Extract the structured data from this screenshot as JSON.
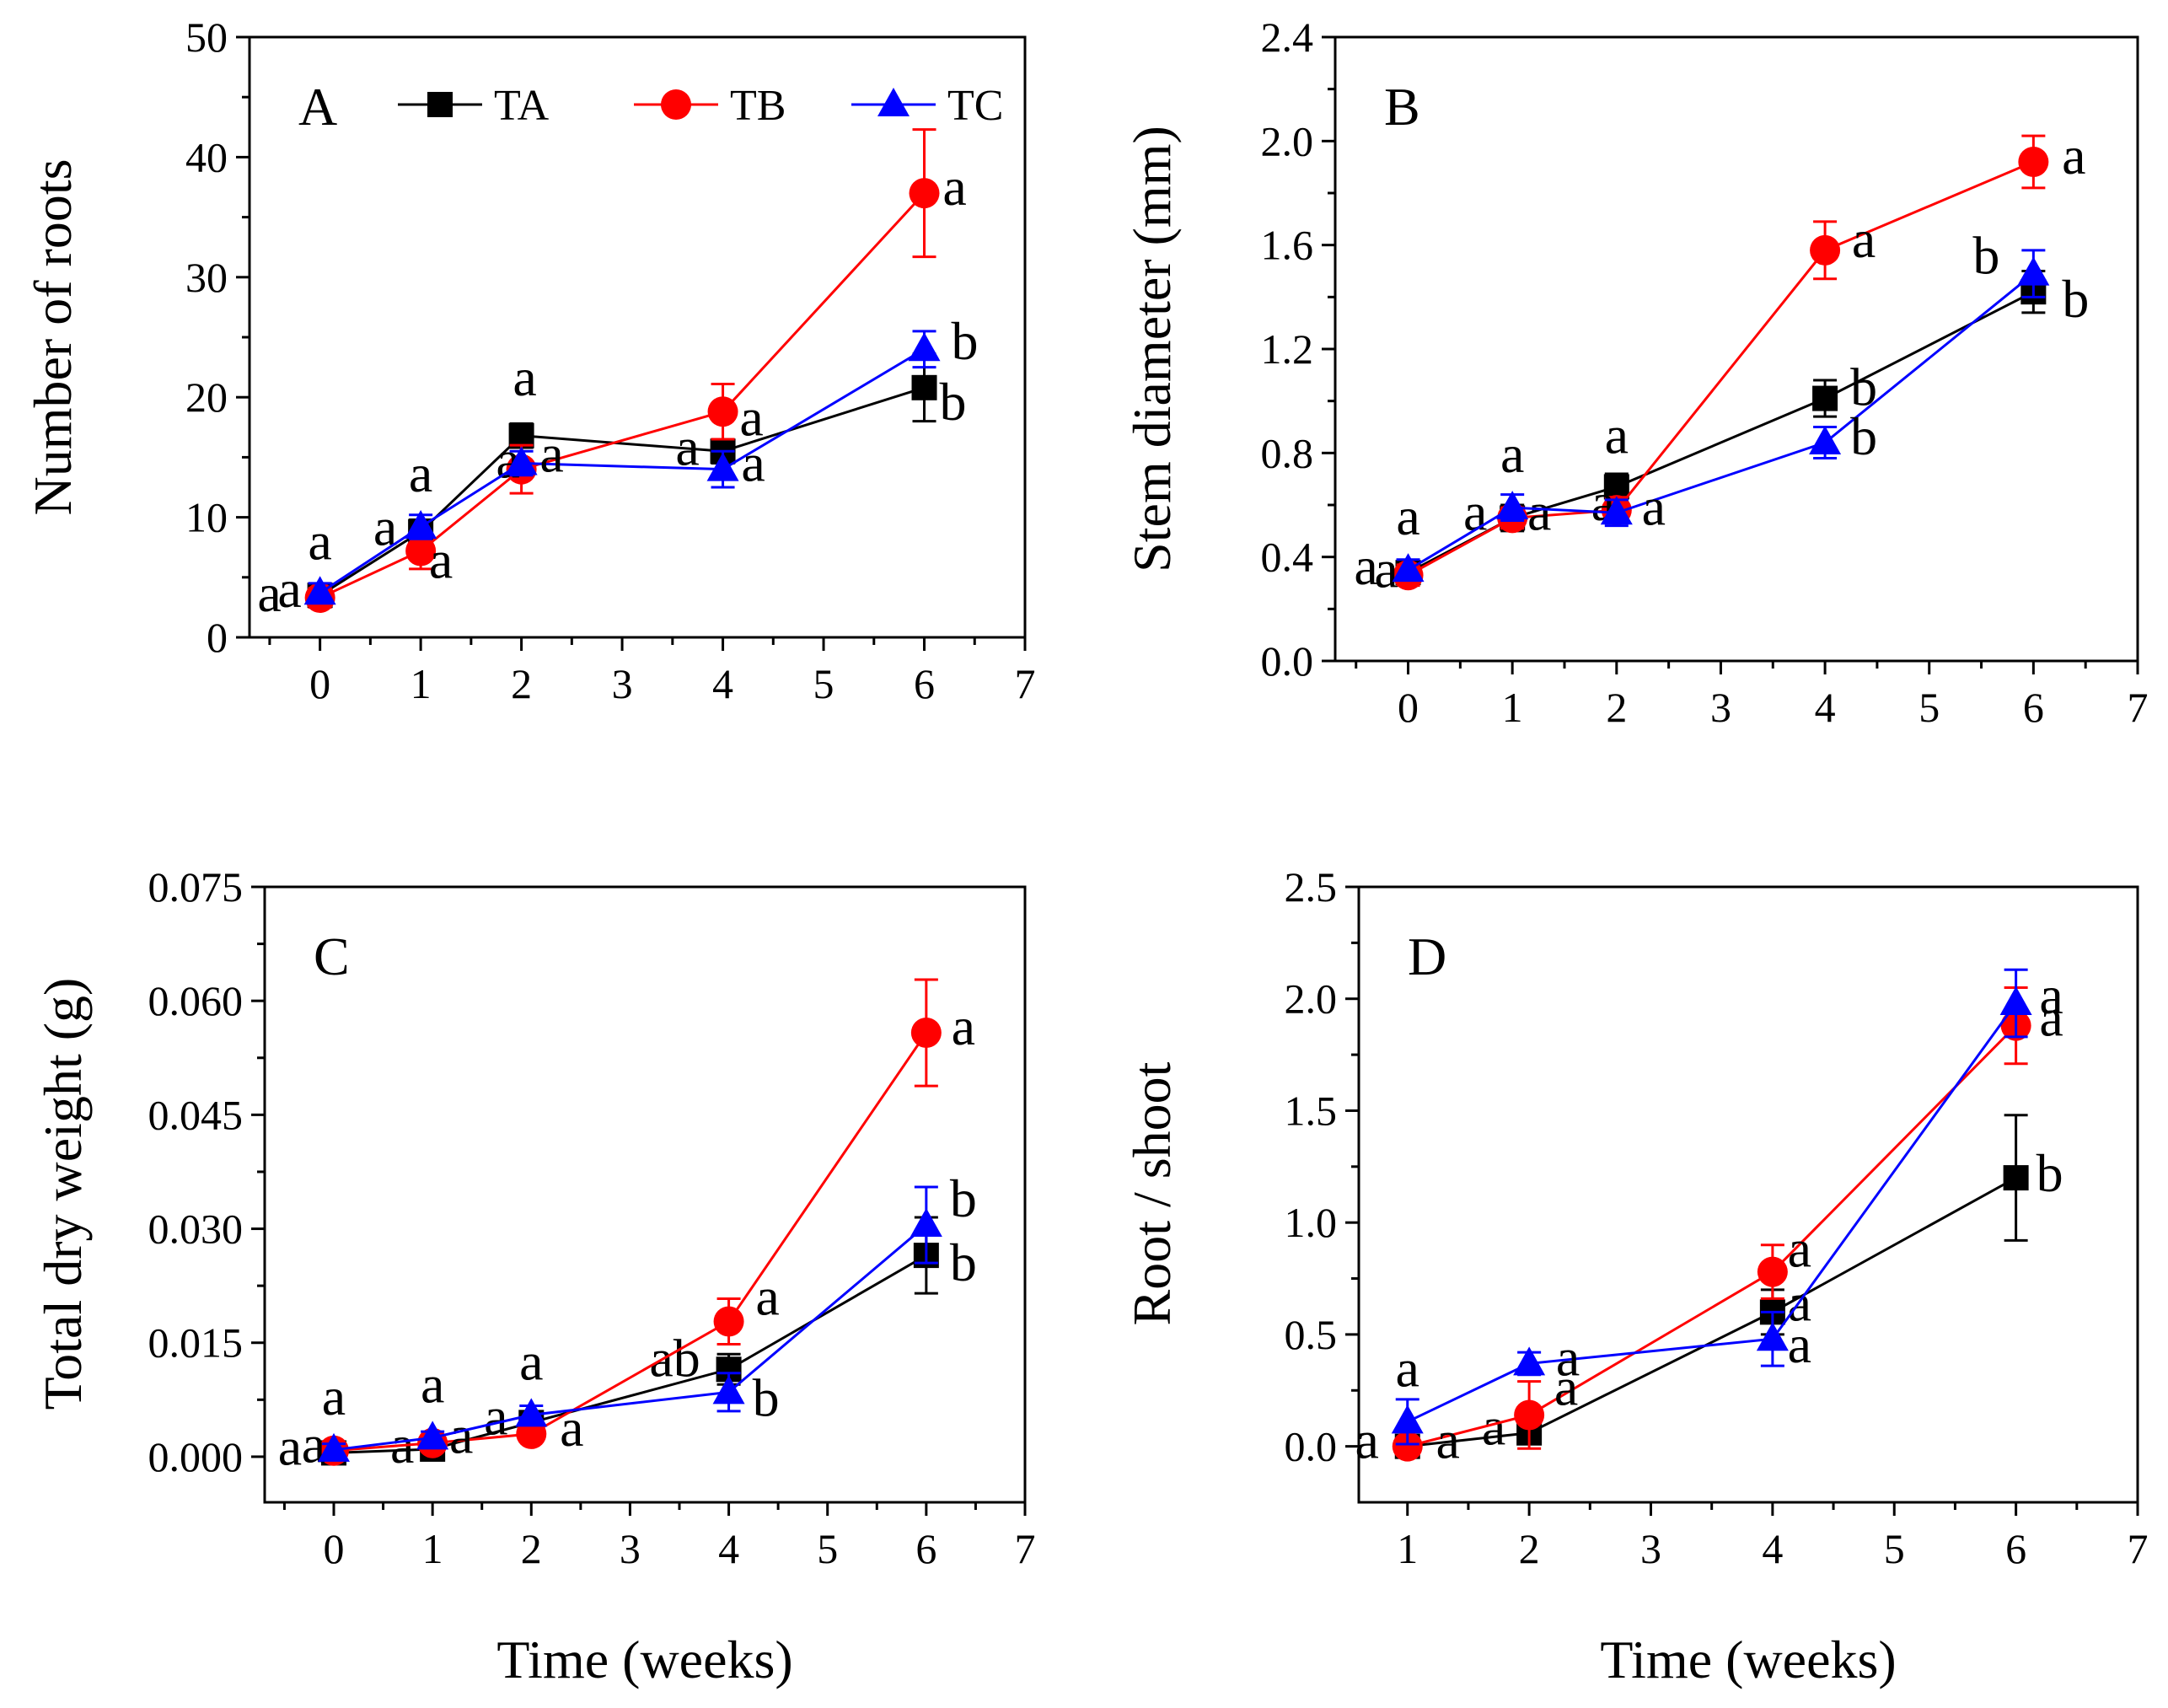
{
  "figure": {
    "series": [
      {
        "key": "TA",
        "name": "TA",
        "color": "#000000",
        "marker": "square"
      },
      {
        "key": "TB",
        "name": "TB",
        "color": "#ff0000",
        "marker": "circle"
      },
      {
        "key": "TC",
        "name": "TC",
        "color": "#0000ff",
        "marker": "triangle"
      }
    ]
  },
  "chart_data": [
    {
      "id": "A",
      "type": "line",
      "panel_label": "A",
      "xlabel": "",
      "ylabel": "Number of roots",
      "xlim": [
        -0.7,
        7
      ],
      "ylim": [
        0,
        50
      ],
      "xticks": [
        0,
        1,
        2,
        3,
        4,
        5,
        6,
        7
      ],
      "yticks": [
        0,
        10,
        20,
        30,
        40,
        50
      ],
      "ytick_labels": [
        "0",
        "10",
        "20",
        "30",
        "40",
        "50"
      ],
      "legend": "top",
      "x": [
        0,
        1,
        2,
        4,
        6
      ],
      "series": [
        {
          "name": "TA",
          "values": [
            3.5,
            8.8,
            16.8,
            15.5,
            20.8
          ],
          "errors": [
            0.8,
            1.0,
            1.0,
            1.0,
            2.8
          ],
          "letters": [
            "a",
            "a",
            "a",
            "a",
            "b"
          ]
        },
        {
          "name": "TB",
          "values": [
            3.3,
            7.2,
            14.0,
            18.8,
            37.0
          ],
          "errors": [
            0.8,
            1.5,
            2.0,
            2.3,
            5.3
          ],
          "letters": [
            "a",
            "a",
            "a",
            "a",
            "a"
          ]
        },
        {
          "name": "TC",
          "values": [
            3.7,
            9.2,
            14.5,
            14.0,
            24.0
          ],
          "errors": [
            0.8,
            1.0,
            1.0,
            1.5,
            1.5
          ],
          "letters": [
            "a",
            "a",
            "a",
            "a",
            "b"
          ]
        }
      ]
    },
    {
      "id": "B",
      "type": "line",
      "panel_label": "B",
      "xlabel": "",
      "ylabel": "Stem diameter (mm)",
      "xlim": [
        -0.7,
        7
      ],
      "ylim": [
        0,
        2.4
      ],
      "xticks": [
        0,
        1,
        2,
        3,
        4,
        5,
        6,
        7
      ],
      "yticks": [
        0,
        0.4,
        0.8,
        1.2,
        1.6,
        2.0,
        2.4
      ],
      "ytick_labels": [
        "0.0",
        "0.4",
        "0.8",
        "1.2",
        "1.6",
        "2.0",
        "2.4"
      ],
      "x": [
        0,
        1,
        2,
        4,
        6
      ],
      "series": [
        {
          "name": "TA",
          "values": [
            0.34,
            0.55,
            0.67,
            1.01,
            1.42
          ],
          "errors": [
            0.04,
            0.05,
            0.05,
            0.07,
            0.08
          ],
          "letters": [
            "a",
            "a",
            "a",
            "b",
            "b"
          ]
        },
        {
          "name": "TB",
          "values": [
            0.33,
            0.55,
            0.58,
            1.58,
            1.92
          ],
          "errors": [
            0.04,
            0.04,
            0.05,
            0.11,
            0.1
          ],
          "letters": [
            "a",
            "a",
            "a",
            "a",
            "a"
          ]
        },
        {
          "name": "TC",
          "values": [
            0.35,
            0.59,
            0.57,
            0.84,
            1.49
          ],
          "errors": [
            0.04,
            0.05,
            0.05,
            0.06,
            0.09
          ],
          "letters": [
            "a",
            "a",
            "a",
            "b",
            "b"
          ]
        }
      ]
    },
    {
      "id": "C",
      "type": "line",
      "panel_label": "C",
      "xlabel": "Time (weeks)",
      "ylabel": "Total dry weight (g)",
      "xlim": [
        -0.7,
        7
      ],
      "ylim": [
        -0.006,
        0.075
      ],
      "xticks": [
        0,
        1,
        2,
        3,
        4,
        5,
        6,
        7
      ],
      "yticks": [
        0,
        0.015,
        0.03,
        0.045,
        0.06,
        0.075
      ],
      "ytick_labels": [
        "0.000",
        "0.015",
        "0.030",
        "0.045",
        "0.060",
        "0.075"
      ],
      "x": [
        0,
        1,
        2,
        4,
        6
      ],
      "series": [
        {
          "name": "TA",
          "values": [
            0.0005,
            0.001,
            0.0045,
            0.0115,
            0.0265
          ],
          "errors": [
            0.0008,
            0.0008,
            0.0012,
            0.002,
            0.005
          ],
          "letters": [
            "a",
            "a",
            "a",
            "ab",
            "b"
          ]
        },
        {
          "name": "TB",
          "values": [
            0.0008,
            0.0018,
            0.003,
            0.0178,
            0.0558
          ],
          "errors": [
            0.0008,
            0.0008,
            0.001,
            0.003,
            0.007
          ],
          "letters": [
            "a",
            "a",
            "a",
            "a",
            "a"
          ]
        },
        {
          "name": "TC",
          "values": [
            0.0009,
            0.0025,
            0.0055,
            0.0085,
            0.0305
          ],
          "errors": [
            0.0008,
            0.0008,
            0.0012,
            0.0025,
            0.005
          ],
          "letters": [
            "a",
            "a",
            "a",
            "b",
            "b"
          ]
        }
      ]
    },
    {
      "id": "D",
      "type": "line",
      "panel_label": "D",
      "xlabel": "Time (weeks)",
      "ylabel": "Root / shoot",
      "xlim": [
        0.6,
        7
      ],
      "ylim": [
        -0.25,
        2.5
      ],
      "xticks": [
        1,
        2,
        3,
        4,
        5,
        6,
        7
      ],
      "yticks": [
        0,
        0.5,
        1.0,
        1.5,
        2.0,
        2.5
      ],
      "ytick_labels": [
        "0.0",
        "0.5",
        "1.0",
        "1.5",
        "2.0",
        "2.5"
      ],
      "x": [
        1,
        2,
        4,
        6
      ],
      "series": [
        {
          "name": "TA",
          "values": [
            0.0,
            0.06,
            0.6,
            1.2
          ],
          "errors": [
            0.02,
            0.04,
            0.1,
            0.28
          ],
          "letters": [
            "a",
            "a",
            "a",
            "b"
          ]
        },
        {
          "name": "TB",
          "values": [
            0.0,
            0.14,
            0.78,
            1.88
          ],
          "errors": [
            0.02,
            0.15,
            0.12,
            0.17
          ],
          "letters": [
            "a",
            "a",
            "a",
            "a"
          ]
        },
        {
          "name": "TC",
          "values": [
            0.11,
            0.37,
            0.48,
            1.98
          ],
          "errors": [
            0.1,
            0.05,
            0.12,
            0.15
          ],
          "letters": [
            "a",
            "a",
            "a",
            "a"
          ]
        }
      ]
    }
  ]
}
